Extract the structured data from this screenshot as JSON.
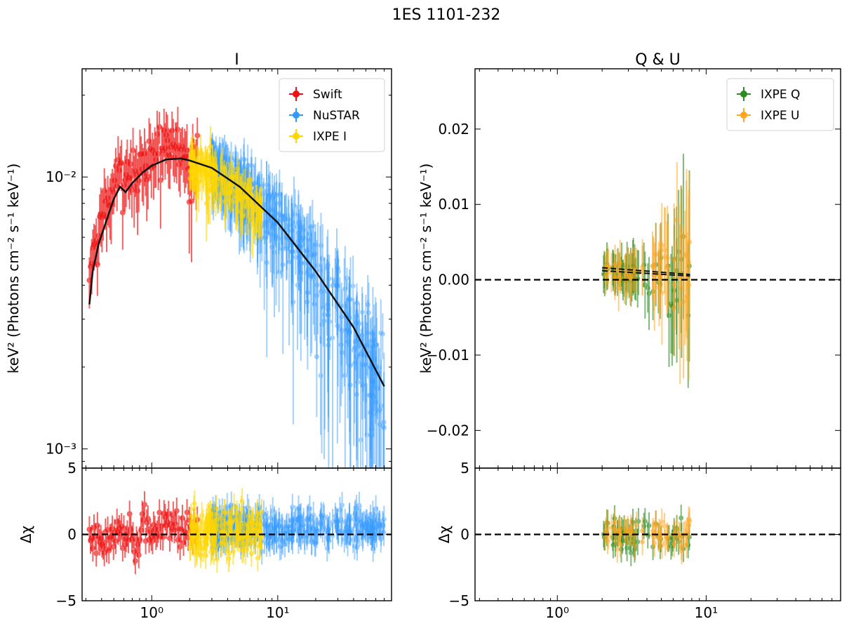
{
  "figure": {
    "title": "1ES 1101-232"
  },
  "chart_data": [
    {
      "type": "scatter",
      "panel": "I",
      "title": "I",
      "xlabel": "",
      "ylabel": "keV² (Photons cm⁻² s⁻¹ keV⁻¹)",
      "xscale": "log",
      "yscale": "log",
      "xlim": [
        0.28,
        80
      ],
      "ylim": [
        0.00085,
        0.025
      ],
      "xticks": [
        {
          "v": 1,
          "label": "10⁰"
        },
        {
          "v": 10,
          "label": "10¹"
        }
      ],
      "yticks": [
        {
          "v": 0.001,
          "label": "10⁻³"
        },
        {
          "v": 0.01,
          "label": "10⁻²"
        }
      ],
      "legend_position": "top-right",
      "series": [
        {
          "name": "Swift",
          "color": "#ee1111",
          "x_range": [
            0.32,
            7.5
          ],
          "n_points": 95
        },
        {
          "name": "NuSTAR",
          "color": "#3399ff",
          "x_range": [
            3.0,
            70
          ],
          "n_points": 420
        },
        {
          "name": "IXPE I",
          "color": "#ffd700",
          "x_range": [
            2.0,
            7.5
          ],
          "n_points": 160
        }
      ],
      "model": {
        "color": "#111111",
        "points": [
          [
            0.32,
            0.0034
          ],
          [
            0.34,
            0.0045
          ],
          [
            0.38,
            0.0057
          ],
          [
            0.45,
            0.0072
          ],
          [
            0.5,
            0.0083
          ],
          [
            0.56,
            0.0092
          ],
          [
            0.62,
            0.0088
          ],
          [
            0.7,
            0.0095
          ],
          [
            0.85,
            0.0104
          ],
          [
            1.0,
            0.011
          ],
          [
            1.3,
            0.0116
          ],
          [
            1.7,
            0.0117
          ],
          [
            2.0,
            0.0115
          ],
          [
            3.0,
            0.0108
          ],
          [
            5.0,
            0.0092
          ],
          [
            10,
            0.0068
          ],
          [
            20,
            0.0045
          ],
          [
            40,
            0.0028
          ],
          [
            70,
            0.0017
          ]
        ]
      }
    },
    {
      "type": "scatter",
      "panel": "I-residuals",
      "ylabel": "Δχ",
      "xscale": "log",
      "xlim": [
        0.28,
        80
      ],
      "ylim": [
        -5,
        5
      ],
      "yticks": [
        {
          "v": -5,
          "label": "−5"
        },
        {
          "v": 0,
          "label": "0"
        },
        {
          "v": 5,
          "label": "5"
        }
      ],
      "xticks": [
        {
          "v": 1,
          "label": "10⁰"
        },
        {
          "v": 10,
          "label": "10¹"
        }
      ],
      "zero_line": true
    },
    {
      "type": "scatter",
      "panel": "Q & U",
      "title": "Q & U",
      "ylabel": "keV² (Photons cm⁻² s⁻¹ keV⁻¹)",
      "xscale": "log",
      "yscale": "linear",
      "xlim": [
        0.28,
        80
      ],
      "ylim": [
        -0.025,
        0.028
      ],
      "yticks": [
        {
          "v": -0.02,
          "label": "−0.02"
        },
        {
          "v": -0.01,
          "label": "−0.01"
        },
        {
          "v": 0.0,
          "label": "0.00"
        },
        {
          "v": 0.01,
          "label": "0.01"
        },
        {
          "v": 0.02,
          "label": "0.02"
        }
      ],
      "legend_position": "top-right",
      "series": [
        {
          "name": "IXPE Q",
          "color": "#2e8b22",
          "x_range": [
            2.0,
            7.8
          ],
          "n_points": 60
        },
        {
          "name": "IXPE U",
          "color": "#ffa520",
          "x_range": [
            2.0,
            7.8
          ],
          "n_points": 60
        }
      ],
      "zero_line": true
    },
    {
      "type": "scatter",
      "panel": "Q&U-residuals",
      "ylabel": "Δχ",
      "xscale": "log",
      "xlim": [
        0.28,
        80
      ],
      "ylim": [
        -5,
        5
      ],
      "yticks": [
        {
          "v": -5,
          "label": "−5"
        },
        {
          "v": 0,
          "label": "0"
        },
        {
          "v": 5,
          "label": "5"
        }
      ],
      "xticks": [
        {
          "v": 1,
          "label": "10⁰"
        },
        {
          "v": 10,
          "label": "10¹"
        }
      ],
      "zero_line": true
    }
  ]
}
